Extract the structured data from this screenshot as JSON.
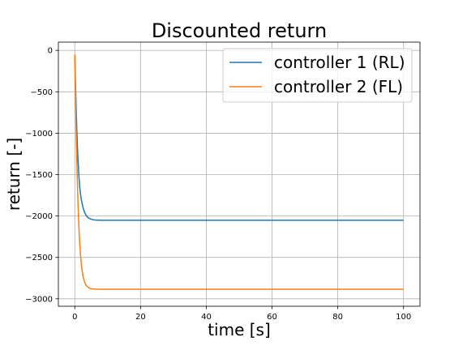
{
  "chart_data": {
    "type": "line",
    "title": "Discounted return",
    "xlabel": "time [s]",
    "ylabel": "return [-]",
    "xlim": [
      -5,
      105
    ],
    "ylim": [
      -3090,
      100
    ],
    "xticks": [
      0,
      20,
      40,
      60,
      80,
      100
    ],
    "xtick_labels": [
      "0",
      "20",
      "40",
      "60",
      "80",
      "100"
    ],
    "yticks": [
      0,
      -500,
      -1000,
      -1500,
      -2000,
      -2500,
      -3000
    ],
    "ytick_labels": [
      "0",
      "−500",
      "−1000",
      "−1500",
      "−2000",
      "−2500",
      "−3000"
    ],
    "grid": true,
    "legend_position": "top-right",
    "series": [
      {
        "name": "controller 1 (RL)",
        "color": "#1f77b4",
        "x": [
          0,
          0.25,
          0.5,
          0.75,
          1,
          1.25,
          1.5,
          1.75,
          2,
          2.5,
          3,
          3.5,
          4,
          5,
          6,
          7,
          8,
          10,
          15,
          20,
          40,
          60,
          80,
          100
        ],
        "y": [
          -50,
          -480,
          -820,
          -1120,
          -1340,
          -1520,
          -1650,
          -1740,
          -1810,
          -1900,
          -1960,
          -1995,
          -2020,
          -2040,
          -2048,
          -2050,
          -2052,
          -2052,
          -2052,
          -2052,
          -2052,
          -2052,
          -2052,
          -2052
        ]
      },
      {
        "name": "controller 2 (FL)",
        "color": "#ff7f0e",
        "x": [
          0,
          0.25,
          0.5,
          0.75,
          1,
          1.25,
          1.5,
          1.75,
          2,
          2.5,
          3,
          3.5,
          4,
          4.5,
          5,
          6,
          7,
          8,
          10,
          15,
          20,
          40,
          60,
          80,
          100
        ],
        "y": [
          -50,
          -650,
          -1150,
          -1550,
          -1880,
          -2140,
          -2330,
          -2480,
          -2590,
          -2730,
          -2800,
          -2840,
          -2860,
          -2872,
          -2878,
          -2882,
          -2884,
          -2885,
          -2885,
          -2885,
          -2885,
          -2885,
          -2885,
          -2885,
          -2885
        ]
      }
    ]
  }
}
